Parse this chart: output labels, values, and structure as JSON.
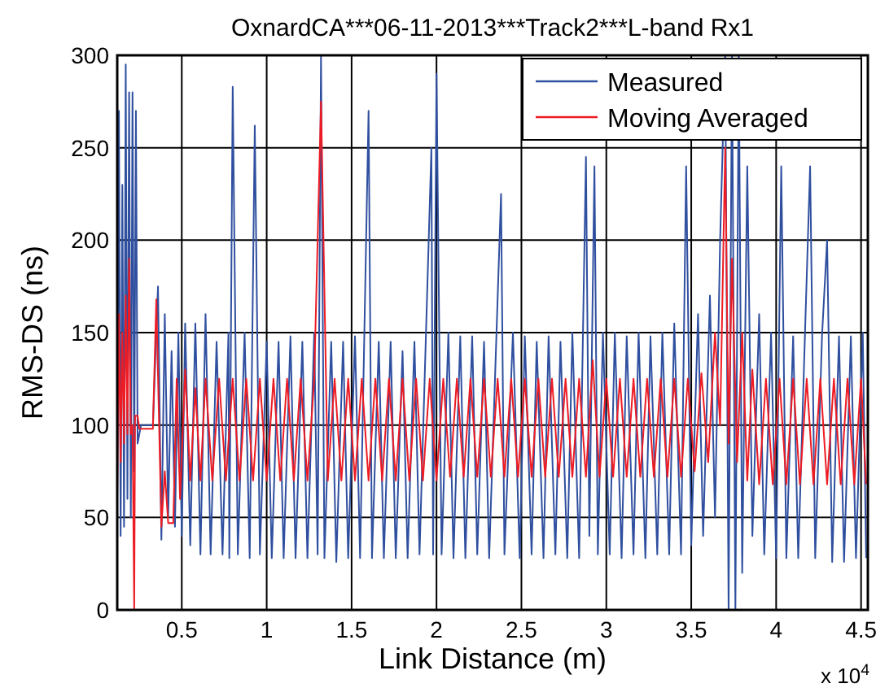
{
  "chart_data": {
    "type": "line",
    "title": "OxnardCA***06-11-2013***Track2***L-band Rx1",
    "xlabel": "Link Distance (m)",
    "ylabel": "RMS-DS (ns)",
    "annotations": [
      "x 10$^{4}$"
    ],
    "xlim": [
      0.12,
      4.54
    ],
    "xticks": [
      0.5,
      1,
      1.5,
      2,
      2.5,
      3,
      3.5,
      4,
      4.5
    ],
    "ylim": [
      0,
      300
    ],
    "yticks": [
      0,
      50,
      100,
      150,
      200,
      250,
      300
    ],
    "grid": true,
    "legend": "top right",
    "line_style": "solid",
    "marker": "none",
    "series": [
      {
        "name": "Measured",
        "color": "#2f4f9f",
        "x": [
          0.12,
          0.13,
          0.14,
          0.15,
          0.16,
          0.17,
          0.18,
          0.19,
          0.2,
          0.21,
          0.22,
          0.23,
          0.24,
          0.26,
          0.3,
          0.33,
          0.36,
          0.38,
          0.4,
          0.42,
          0.44,
          0.46,
          0.48,
          0.5,
          0.52,
          0.55,
          0.58,
          0.61,
          0.64,
          0.67,
          0.705,
          0.74,
          0.775,
          0.78,
          0.8,
          0.83,
          0.87,
          0.9,
          0.93,
          0.96,
          1,
          1.03,
          1.07,
          1.1,
          1.14,
          1.17,
          1.21,
          1.24,
          1.28,
          1.3,
          1.32,
          1.34,
          1.38,
          1.41,
          1.45,
          1.48,
          1.52,
          1.55,
          1.6,
          1.62,
          1.66,
          1.69,
          1.73,
          1.76,
          1.8,
          1.83,
          1.87,
          1.9,
          1.97,
          1.98,
          2,
          2.03,
          2.07,
          2.1,
          2.14,
          2.17,
          2.21,
          2.24,
          2.28,
          2.31,
          2.38,
          2.4,
          2.45,
          2.49,
          2.52,
          2.56,
          2.59,
          2.63,
          2.66,
          2.7,
          2.73,
          2.77,
          2.8,
          2.84,
          2.88,
          2.9,
          2.93,
          2.95,
          2.98,
          3.02,
          3.05,
          3.09,
          3.12,
          3.16,
          3.19,
          3.23,
          3.26,
          3.3,
          3.33,
          3.37,
          3.4,
          3.44,
          3.47,
          3.5,
          3.54,
          3.57,
          3.61,
          3.64,
          3.67,
          3.7,
          3.72,
          3.74,
          3.76,
          3.78,
          3.8,
          3.83,
          3.86,
          3.9,
          3.93,
          3.97,
          4,
          4.03,
          4.06,
          4.1,
          4.13,
          4.17,
          4.2,
          4.23,
          4.27,
          4.3,
          4.33,
          4.37,
          4.4,
          4.44,
          4.47,
          4.51,
          4.53
        ],
        "values": [
          60,
          270,
          40,
          230,
          45,
          295,
          60,
          280,
          50,
          280,
          75,
          270,
          90,
          100,
          100,
          100,
          175,
          38,
          160,
          50,
          140,
          45,
          150,
          40,
          155,
          35,
          155,
          30,
          160,
          30,
          145,
          30,
          150,
          28,
          283,
          30,
          150,
          28,
          262,
          30,
          145,
          28,
          145,
          28,
          148,
          28,
          145,
          28,
          150,
          30,
          300,
          28,
          145,
          26,
          145,
          28,
          148,
          28,
          270,
          28,
          145,
          28,
          145,
          28,
          140,
          28,
          145,
          30,
          250,
          30,
          290,
          30,
          150,
          28,
          148,
          28,
          148,
          30,
          145,
          28,
          225,
          30,
          150,
          28,
          148,
          30,
          145,
          28,
          148,
          30,
          145,
          28,
          150,
          28,
          245,
          40,
          240,
          30,
          150,
          30,
          150,
          28,
          148,
          30,
          150,
          28,
          148,
          30,
          150,
          30,
          155,
          30,
          240,
          35,
          160,
          40,
          170,
          50,
          200,
          300,
          0,
          300,
          0,
          300,
          20,
          240,
          40,
          160,
          30,
          150,
          28,
          240,
          28,
          148,
          28,
          150,
          240,
          28,
          148,
          200,
          26,
          148,
          26,
          148,
          28,
          150,
          28
        ]
      },
      {
        "name": "Moving Averaged",
        "color": "#ed1c24",
        "x": [
          0.12,
          0.13,
          0.14,
          0.15,
          0.16,
          0.17,
          0.18,
          0.19,
          0.2,
          0.21,
          0.22,
          0.225,
          0.24,
          0.25,
          0.3,
          0.33,
          0.35,
          0.38,
          0.4,
          0.42,
          0.45,
          0.47,
          0.49,
          0.52,
          0.55,
          0.58,
          0.61,
          0.64,
          0.68,
          0.72,
          0.76,
          0.8,
          0.84,
          0.88,
          0.92,
          0.96,
          1,
          1.04,
          1.08,
          1.12,
          1.16,
          1.2,
          1.24,
          1.28,
          1.32,
          1.36,
          1.4,
          1.44,
          1.48,
          1.52,
          1.56,
          1.6,
          1.64,
          1.68,
          1.72,
          1.76,
          1.8,
          1.84,
          1.88,
          1.92,
          1.96,
          2,
          2.04,
          2.08,
          2.12,
          2.16,
          2.2,
          2.24,
          2.28,
          2.32,
          2.36,
          2.4,
          2.44,
          2.48,
          2.52,
          2.56,
          2.6,
          2.64,
          2.68,
          2.72,
          2.76,
          2.8,
          2.84,
          2.88,
          2.92,
          2.96,
          3,
          3.04,
          3.08,
          3.12,
          3.16,
          3.2,
          3.24,
          3.28,
          3.32,
          3.36,
          3.4,
          3.44,
          3.48,
          3.52,
          3.56,
          3.6,
          3.64,
          3.67,
          3.7,
          3.72,
          3.74,
          3.77,
          3.8,
          3.83,
          3.86,
          3.9,
          3.94,
          3.98,
          4.02,
          4.06,
          4.1,
          4.14,
          4.18,
          4.22,
          4.26,
          4.3,
          4.34,
          4.38,
          4.42,
          4.46,
          4.5,
          4.53
        ],
        "values": [
          60,
          160,
          80,
          150,
          90,
          170,
          95,
          190,
          95,
          100,
          0,
          105,
          105,
          98,
          98,
          98,
          168,
          45,
          75,
          47,
          47,
          125,
          60,
          130,
          70,
          120,
          70,
          125,
          70,
          125,
          70,
          125,
          70,
          125,
          70,
          125,
          70,
          125,
          70,
          125,
          70,
          125,
          70,
          125,
          275,
          70,
          125,
          70,
          125,
          70,
          125,
          70,
          125,
          70,
          125,
          70,
          125,
          70,
          125,
          70,
          125,
          70,
          125,
          72,
          125,
          72,
          125,
          72,
          125,
          72,
          125,
          72,
          125,
          72,
          125,
          72,
          125,
          72,
          125,
          72,
          125,
          72,
          125,
          72,
          135,
          72,
          125,
          72,
          125,
          72,
          125,
          72,
          125,
          72,
          125,
          72,
          125,
          72,
          125,
          75,
          128,
          80,
          150,
          100,
          250,
          90,
          190,
          80,
          150,
          70,
          130,
          68,
          125,
          68,
          125,
          68,
          125,
          68,
          125,
          68,
          125,
          68,
          125,
          68,
          125,
          68,
          125,
          68
        ]
      }
    ]
  }
}
